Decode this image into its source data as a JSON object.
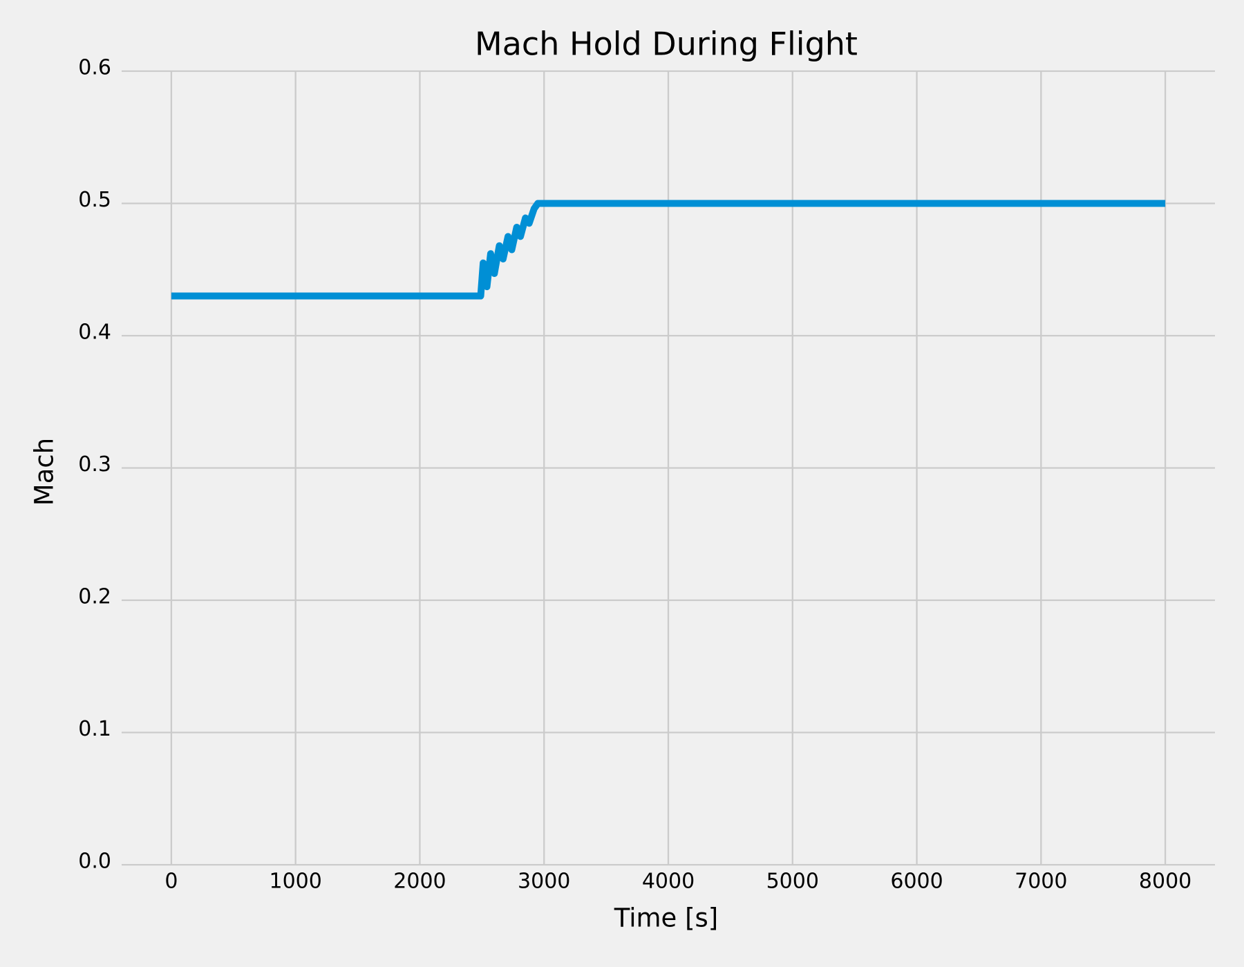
{
  "chart_data": {
    "type": "line",
    "title": "Mach Hold During Flight",
    "x_label": "Time [s]",
    "y_label": "Mach",
    "x": [
      0,
      2490,
      2510,
      2540,
      2570,
      2600,
      2640,
      2670,
      2710,
      2740,
      2780,
      2810,
      2850,
      2880,
      2920,
      2950,
      8000
    ],
    "series": [
      {
        "color": "#008fd5",
        "values": [
          0.43,
          0.43,
          0.455,
          0.437,
          0.462,
          0.447,
          0.468,
          0.458,
          0.475,
          0.465,
          0.482,
          0.475,
          0.489,
          0.485,
          0.496,
          0.5,
          0.5
        ]
      }
    ],
    "xlim": [
      -400,
      8400
    ],
    "ylim": [
      0,
      0.6
    ],
    "xticks": [
      0,
      1000,
      2000,
      3000,
      4000,
      5000,
      6000,
      7000,
      8000
    ],
    "yticks": [
      {
        "value": 0,
        "label": "0.0"
      },
      0.1,
      0.2,
      0.3,
      0.4,
      0.5,
      0.6
    ],
    "grid": true
  }
}
